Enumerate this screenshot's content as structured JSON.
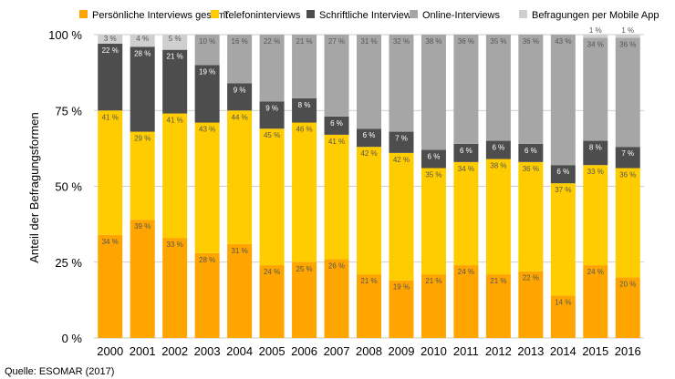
{
  "chart_data": {
    "type": "bar",
    "stacked": true,
    "categories": [
      "2000",
      "2001",
      "2002",
      "2003",
      "2004",
      "2005",
      "2006",
      "2007",
      "2008",
      "2009",
      "2010",
      "2011",
      "2012",
      "2013",
      "2014",
      "2015",
      "2016"
    ],
    "series": [
      {
        "name": "Persönliche Interviews gesamt",
        "color": "#FFA500",
        "values": [
          34,
          39,
          33,
          28,
          31,
          24,
          25,
          26,
          21,
          19,
          21,
          24,
          21,
          22,
          14,
          24,
          20
        ]
      },
      {
        "name": "Telefoninterviews",
        "color": "#FFCC00",
        "values": [
          41,
          29,
          41,
          43,
          44,
          45,
          46,
          41,
          42,
          42,
          35,
          34,
          38,
          36,
          37,
          33,
          36
        ]
      },
      {
        "name": "Schriftliche Interviews",
        "color": "#4D4D4D",
        "values": [
          22,
          28,
          21,
          19,
          9,
          9,
          8,
          6,
          6,
          7,
          6,
          6,
          6,
          6,
          6,
          8,
          7
        ]
      },
      {
        "name": "Online-Interviews",
        "color": "#A6A6A6",
        "values": [
          0,
          0,
          0,
          10,
          16,
          22,
          21,
          27,
          31,
          32,
          38,
          36,
          35,
          36,
          43,
          34,
          36
        ]
      },
      {
        "name": "Befragungen per Mobile App",
        "color": "#CFCFCF",
        "values": [
          3,
          4,
          5,
          0,
          0,
          0,
          0,
          0,
          0,
          0,
          0,
          0,
          0,
          0,
          0,
          1,
          1
        ]
      }
    ],
    "labels": [
      [
        "34 %",
        "39 %",
        "33 %",
        "28 %",
        "31 %",
        "24 %",
        "25 %",
        "26 %",
        "21 %",
        "19 %",
        "21 %",
        "24 %",
        "21 %",
        "22 %",
        "14 %",
        "24 %",
        "20 %"
      ],
      [
        "41 %",
        "29 %",
        "41 %",
        "43 %",
        "44 %",
        "45 %",
        "46 %",
        "41 %",
        "42 %",
        "42 %",
        "35 %",
        "34 %",
        "38 %",
        "36 %",
        "37 %",
        "33 %",
        "36 %"
      ],
      [
        "22 %",
        "28 %",
        "21 %",
        "19 %",
        "9 %",
        "9 %",
        "8 %",
        "6 %",
        "6 %",
        "7 %",
        "6 %",
        "6 %",
        "6 %",
        "6 %",
        "6 %",
        "8 %",
        "7 %"
      ],
      [
        "",
        "",
        "",
        "10 %",
        "16 %",
        "22 %",
        "21 %",
        "27 %",
        "31 %",
        "32 %",
        "38 %",
        "36 %",
        "35 %",
        "36 %",
        "43 %",
        "34 %",
        "36 %"
      ],
      [
        "3 %",
        "4 %",
        "5 %",
        "",
        "",
        "",
        "",
        "",
        "",
        "",
        "",
        "",
        "",
        "",
        "",
        "1 %",
        "1 %"
      ]
    ],
    "yticks": [
      0,
      25,
      50,
      75,
      100
    ],
    "ytick_labels": [
      "0 %",
      "25 %",
      "50 %",
      "75 %",
      "100 %"
    ],
    "ylim": [
      0,
      100
    ],
    "ylabel": "Anteil der Befragungsformen",
    "xlabel": "",
    "legend_position": "top",
    "grid": true
  },
  "source": "Quelle: ESOMAR (2017)"
}
